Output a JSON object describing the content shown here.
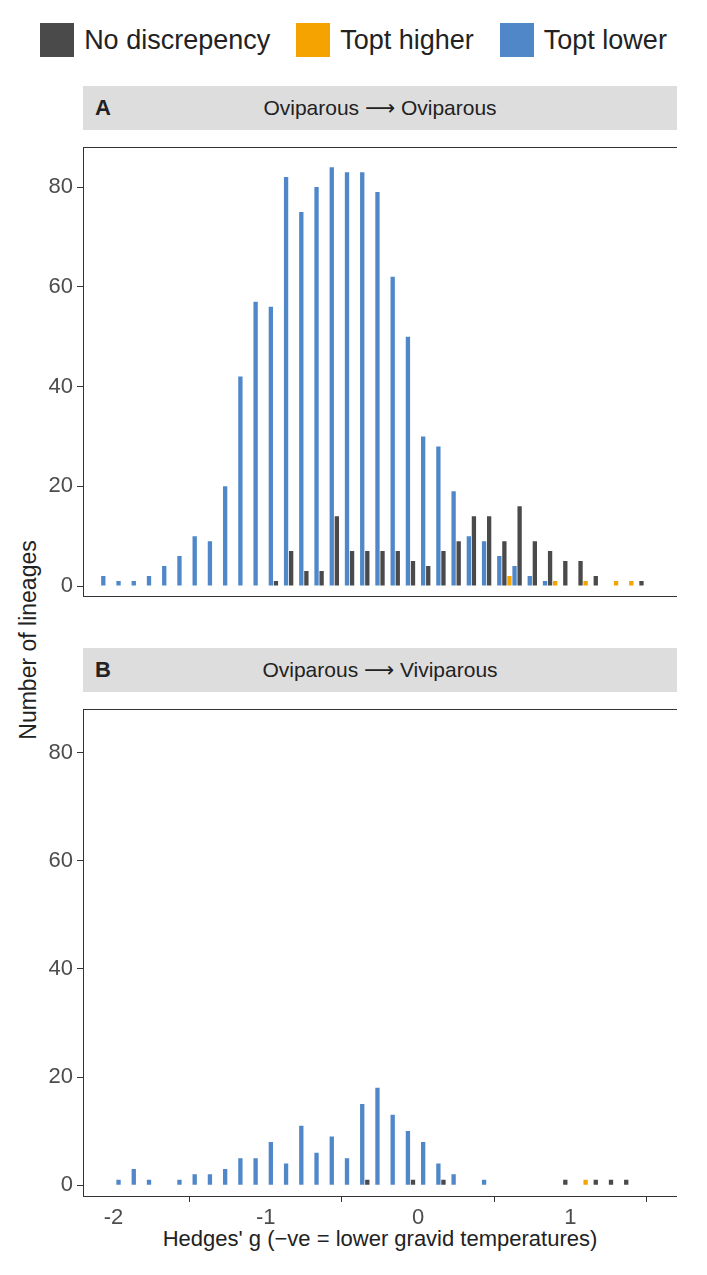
{
  "chart_data": [
    {
      "type": "bar",
      "panel_label": "A",
      "title": "Oviparous ⟶ Oviparous",
      "y_label": "Number of lineages",
      "legend": "top",
      "grid": false,
      "tick_labels": "y",
      "bins": [
        -2.15,
        -2.05,
        -1.95,
        -1.85,
        -1.75,
        -1.65,
        -1.55,
        -1.45,
        -1.35,
        -1.25,
        -1.15,
        -1.05,
        -0.95,
        -0.85,
        -0.75,
        -0.65,
        -0.55,
        -0.45,
        -0.35,
        -0.25,
        -0.15,
        -0.05,
        0.05,
        0.15,
        0.25,
        0.35,
        0.45,
        0.55,
        0.65,
        0.75,
        0.85,
        0.95,
        1.05,
        1.15,
        1.25,
        1.35,
        1.45,
        1.55,
        1.65
      ],
      "series": [
        {
          "name": "No discrepency",
          "color": "#4a4a4a",
          "values": [
            0,
            0,
            0,
            0,
            0,
            0,
            0,
            0,
            0,
            0,
            0,
            0,
            1,
            7,
            3,
            3,
            14,
            7,
            7,
            7,
            7,
            5,
            4,
            7,
            9,
            14,
            14,
            9,
            16,
            9,
            7,
            5,
            5,
            2,
            0,
            0,
            1,
            0
          ]
        },
        {
          "name": "Topt higher",
          "color": "#f5a300",
          "values": [
            0,
            0,
            0,
            0,
            0,
            0,
            0,
            0,
            0,
            0,
            0,
            0,
            0,
            0,
            0,
            0,
            0,
            0,
            0,
            0,
            0,
            0,
            0,
            0,
            0,
            0,
            0,
            2,
            0,
            0,
            1,
            0,
            1,
            0,
            1,
            1,
            0,
            0
          ]
        },
        {
          "name": "Topt lower",
          "color": "#4f87c9",
          "values": [
            2,
            1,
            1,
            2,
            4,
            6,
            10,
            9,
            20,
            42,
            57,
            56,
            82,
            75,
            80,
            84,
            83,
            83,
            79,
            62,
            50,
            30,
            28,
            19,
            10,
            9,
            6,
            4,
            2,
            1,
            0,
            0,
            0,
            0,
            0,
            0,
            0,
            0
          ]
        }
      ],
      "xlim": [
        -2.2,
        1.7
      ],
      "xticks": [
        -2,
        -1,
        0,
        1
      ],
      "ylim": [
        -2,
        88
      ],
      "yticks": [
        0,
        20,
        40,
        60,
        80
      ]
    },
    {
      "type": "bar",
      "panel_label": "B",
      "title": "Oviparous ⟶ Viviparous",
      "x_label": "Hedges' g (−ve = lower gravid temperatures)",
      "grid": false,
      "bins": [
        -2.15,
        -2.05,
        -1.95,
        -1.85,
        -1.75,
        -1.65,
        -1.55,
        -1.45,
        -1.35,
        -1.25,
        -1.15,
        -1.05,
        -0.95,
        -0.85,
        -0.75,
        -0.65,
        -0.55,
        -0.45,
        -0.35,
        -0.25,
        -0.15,
        -0.05,
        0.05,
        0.15,
        0.25,
        0.35,
        0.45,
        0.55,
        0.65,
        0.75,
        0.85,
        0.95,
        1.05,
        1.15,
        1.25,
        1.35,
        1.45,
        1.55,
        1.65
      ],
      "series": [
        {
          "name": "No discrepency",
          "color": "#4a4a4a",
          "values": [
            0,
            0,
            0,
            0,
            0,
            0,
            0,
            0,
            0,
            0,
            0,
            0,
            0,
            0,
            0,
            0,
            0,
            0,
            1,
            0,
            0,
            1,
            0,
            1,
            0,
            0,
            0,
            0,
            0,
            0,
            0,
            1,
            0,
            1,
            1,
            1,
            0,
            0
          ]
        },
        {
          "name": "Topt higher",
          "color": "#f5a300",
          "values": [
            0,
            0,
            0,
            0,
            0,
            0,
            0,
            0,
            0,
            0,
            0,
            0,
            0,
            0,
            0,
            0,
            0,
            0,
            0,
            0,
            0,
            0,
            0,
            0,
            0,
            0,
            0,
            0,
            0,
            0,
            0,
            0,
            1,
            0,
            0,
            0,
            0,
            0
          ]
        },
        {
          "name": "Topt lower",
          "color": "#4f87c9",
          "values": [
            0,
            1,
            3,
            1,
            0,
            1,
            2,
            2,
            3,
            5,
            5,
            8,
            4,
            11,
            6,
            9,
            5,
            15,
            18,
            13,
            10,
            8,
            4,
            2,
            0,
            1,
            0,
            0,
            0,
            0,
            0,
            0,
            0,
            0,
            0,
            0,
            0,
            0
          ]
        }
      ],
      "xlim": [
        -2.2,
        1.7
      ],
      "xticks": [
        -2,
        -1,
        0,
        1
      ],
      "ylim": [
        -2,
        88
      ],
      "yticks": [
        0,
        20,
        40,
        60,
        80
      ]
    }
  ]
}
